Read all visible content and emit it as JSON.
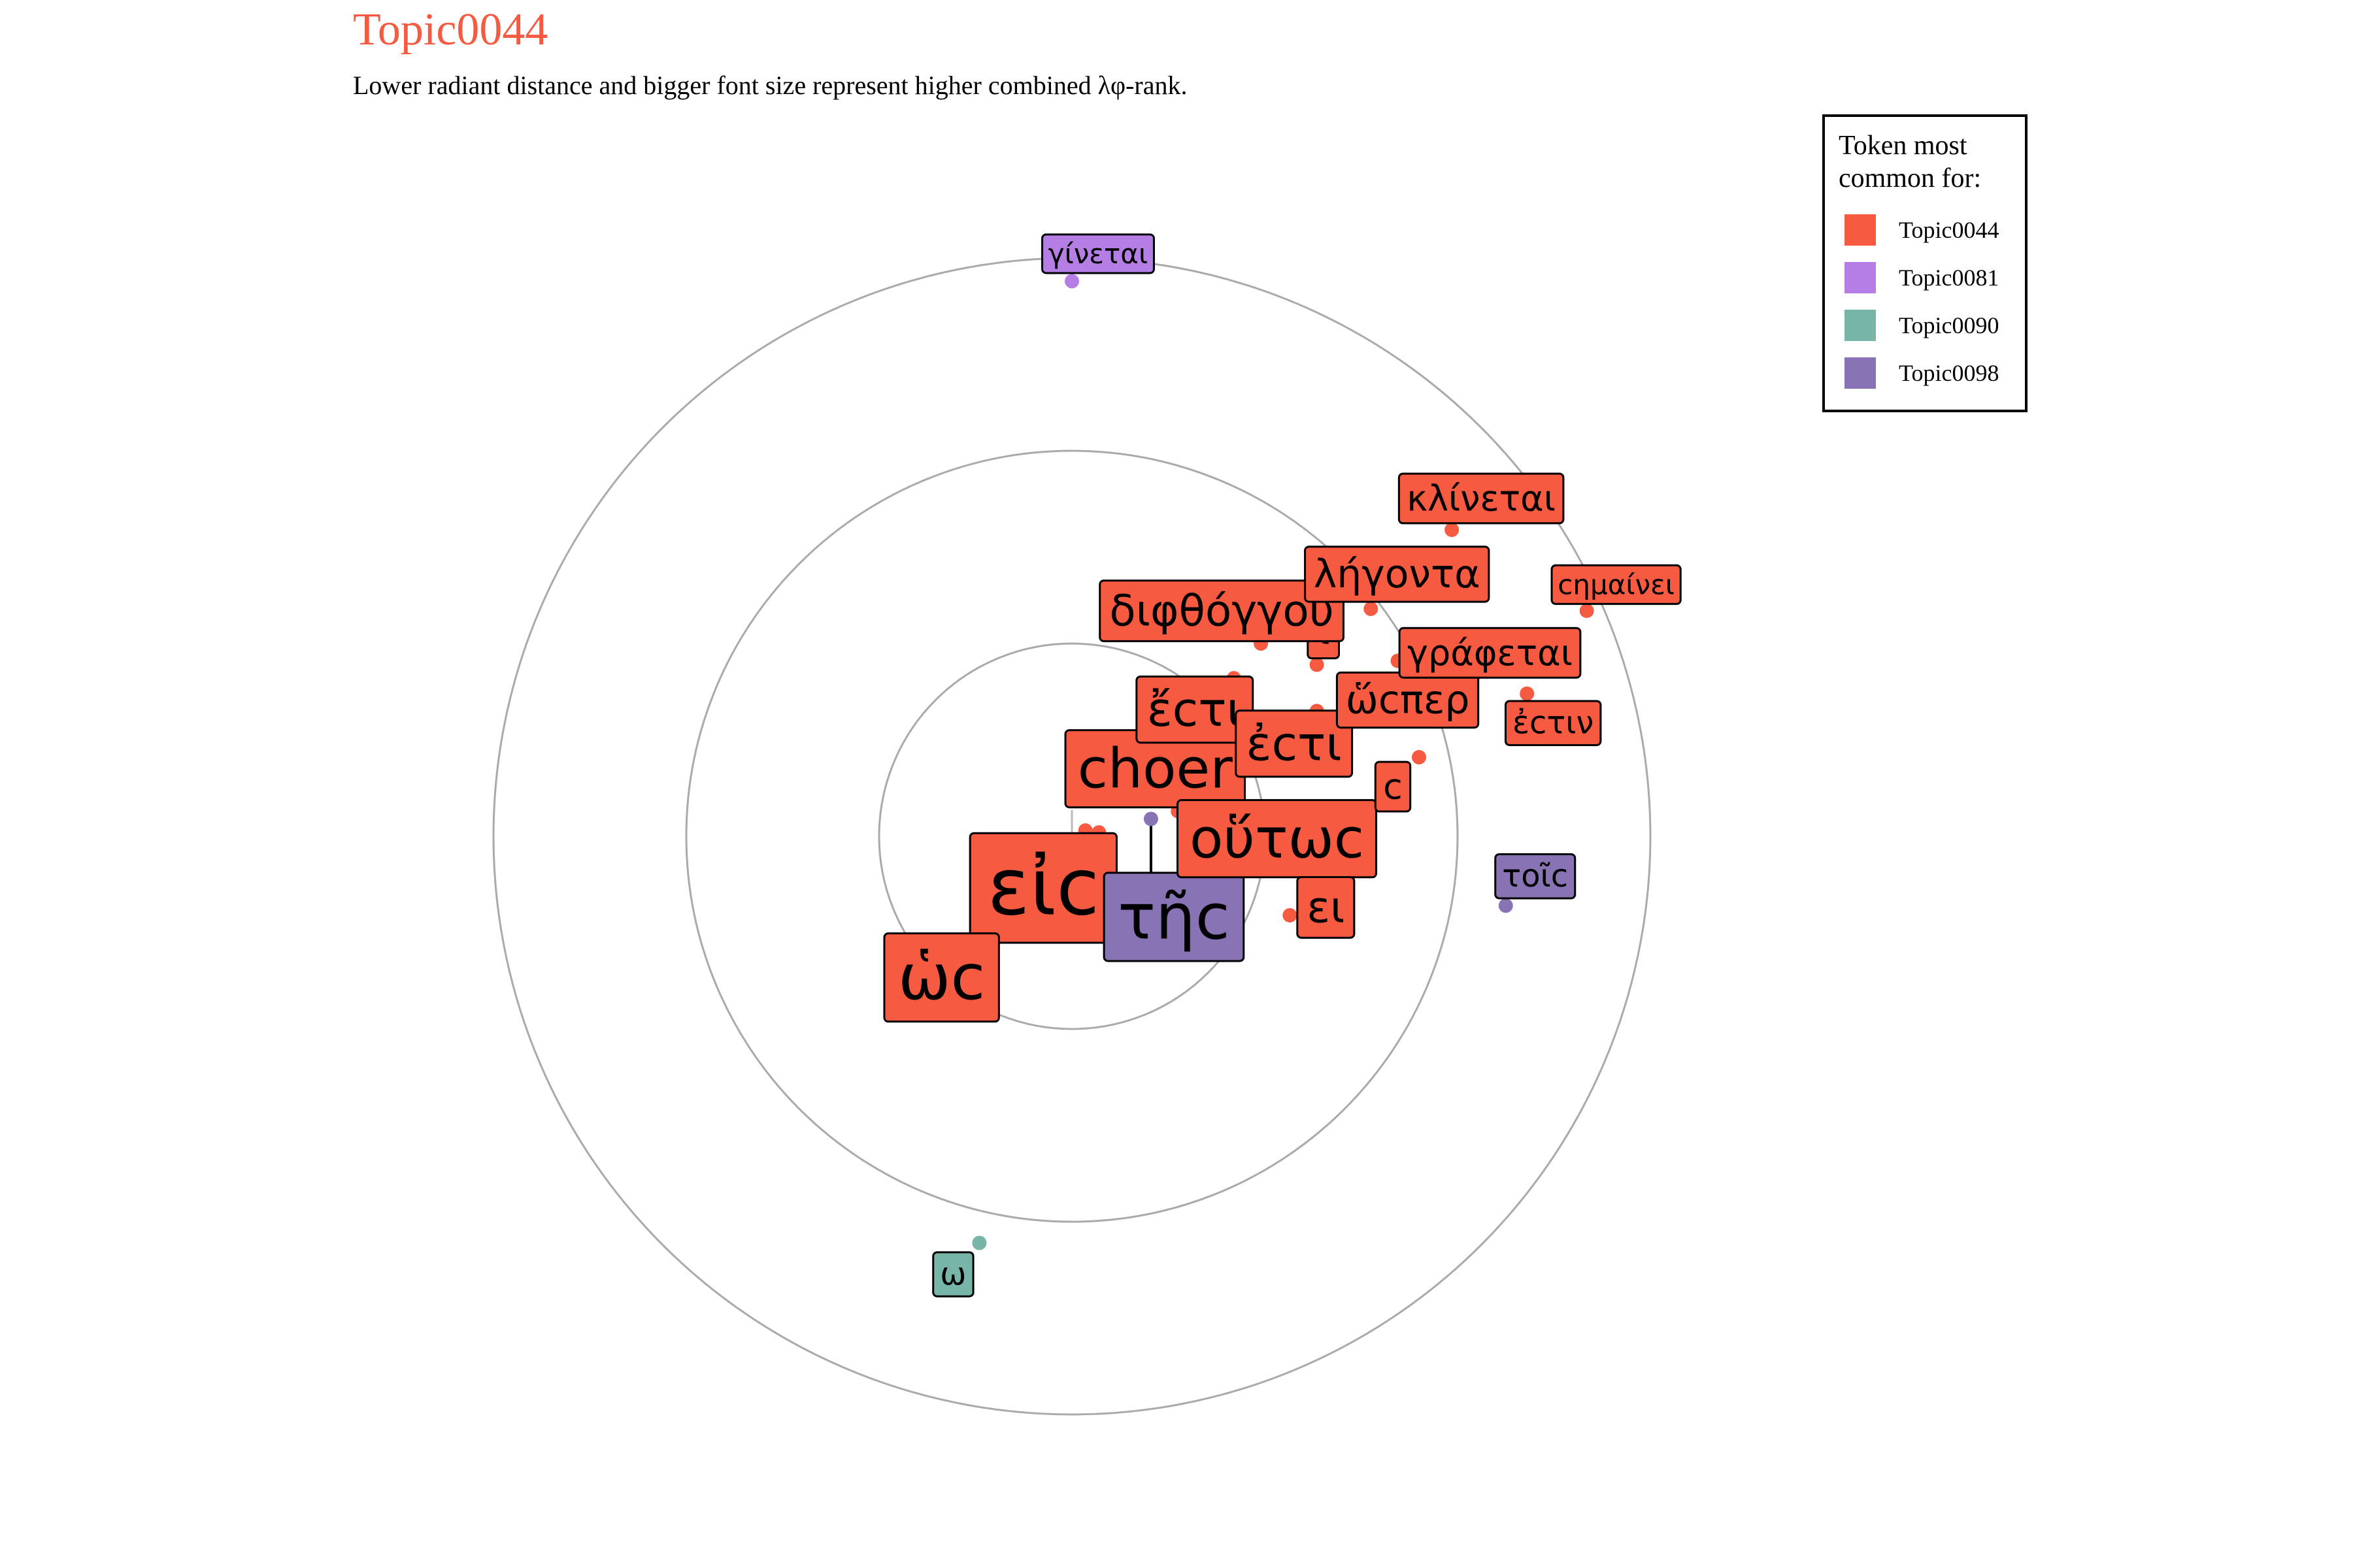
{
  "chart_data": {
    "type": "scatter",
    "title": "Topic0044",
    "subtitle": "Lower radiant distance and bigger font size represent higher combined λφ-rank.",
    "colors": {
      "title": "#F65A41",
      "Topic0044": "#F65A41",
      "Topic0081": "#B47EE5",
      "Topic0090": "#77B5A9",
      "Topic0098": "#8873B4",
      "ring": "#AAAAAA"
    },
    "legend": {
      "title_line1": "Token most",
      "title_line2": "common for:",
      "placement": "right",
      "entries": [
        "Topic0044",
        "Topic0081",
        "Topic0090",
        "Topic0098"
      ]
    },
    "rings": [
      1,
      2,
      3
    ],
    "points": [
      {
        "token": "εἰc",
        "topic": "Topic0044",
        "x": 0.14,
        "y": 0.02,
        "size": 10
      },
      {
        "token": "ὡc",
        "topic": "Topic0044",
        "x": 0.07,
        "y": 0.03,
        "size": 8
      },
      {
        "token": "choer",
        "topic": "Topic0044",
        "x": 0.55,
        "y": 0.13,
        "size": 7
      },
      {
        "token": "τῆc",
        "topic": "Topic0098",
        "x": 0.41,
        "y": 0.09,
        "size": 8
      },
      {
        "token": "οὕτωc",
        "topic": "Topic0044",
        "x": 0.69,
        "y": 0.14,
        "size": 7
      },
      {
        "token": "ἔcτι",
        "topic": "Topic0044",
        "x": 0.84,
        "y": 0.82,
        "size": 6
      },
      {
        "token": "ἐcτι",
        "topic": "Topic0044",
        "x": 1.27,
        "y": 0.65,
        "size": 6
      },
      {
        "token": "ῑ",
        "topic": "Topic0044",
        "x": 1.27,
        "y": 0.89,
        "size": 5
      },
      {
        "token": "ει",
        "topic": "Topic0044",
        "x": 1.13,
        "y": -0.41,
        "size": 5.5
      },
      {
        "token": "διφθόγγου",
        "topic": "Topic0044",
        "x": 0.98,
        "y": 1.0,
        "size": 5.5
      },
      {
        "token": "c",
        "topic": "Topic0044",
        "x": 1.8,
        "y": 0.41,
        "size": 4.5
      },
      {
        "token": "ὥcπερ",
        "topic": "Topic0044",
        "x": 1.69,
        "y": 0.91,
        "size": 5
      },
      {
        "token": "λήγοντα",
        "topic": "Topic0044",
        "x": 1.55,
        "y": 1.18,
        "size": 5
      },
      {
        "token": "γράφεται",
        "topic": "Topic0044",
        "x": 2.1,
        "y": 0.85,
        "size": 4.5
      },
      {
        "token": "κλίνεται",
        "topic": "Topic0044",
        "x": 1.97,
        "y": 1.59,
        "size": 4.5
      },
      {
        "token": "ἐcτιν",
        "topic": "Topic0044",
        "x": 2.36,
        "y": 0.74,
        "size": 4
      },
      {
        "token": "cημαίνει",
        "topic": "Topic0044",
        "x": 2.67,
        "y": 1.17,
        "size": 3.5
      },
      {
        "token": "τοῖc",
        "topic": "Topic0098",
        "x": 2.25,
        "y": -0.36,
        "size": 4
      },
      {
        "token": "ω",
        "topic": "Topic0090",
        "x": -0.48,
        "y": -2.11,
        "size": 4
      },
      {
        "token": "γίνεται",
        "topic": "Topic0081",
        "x": 0.0,
        "y": 2.88,
        "size": 3.5
      }
    ]
  }
}
